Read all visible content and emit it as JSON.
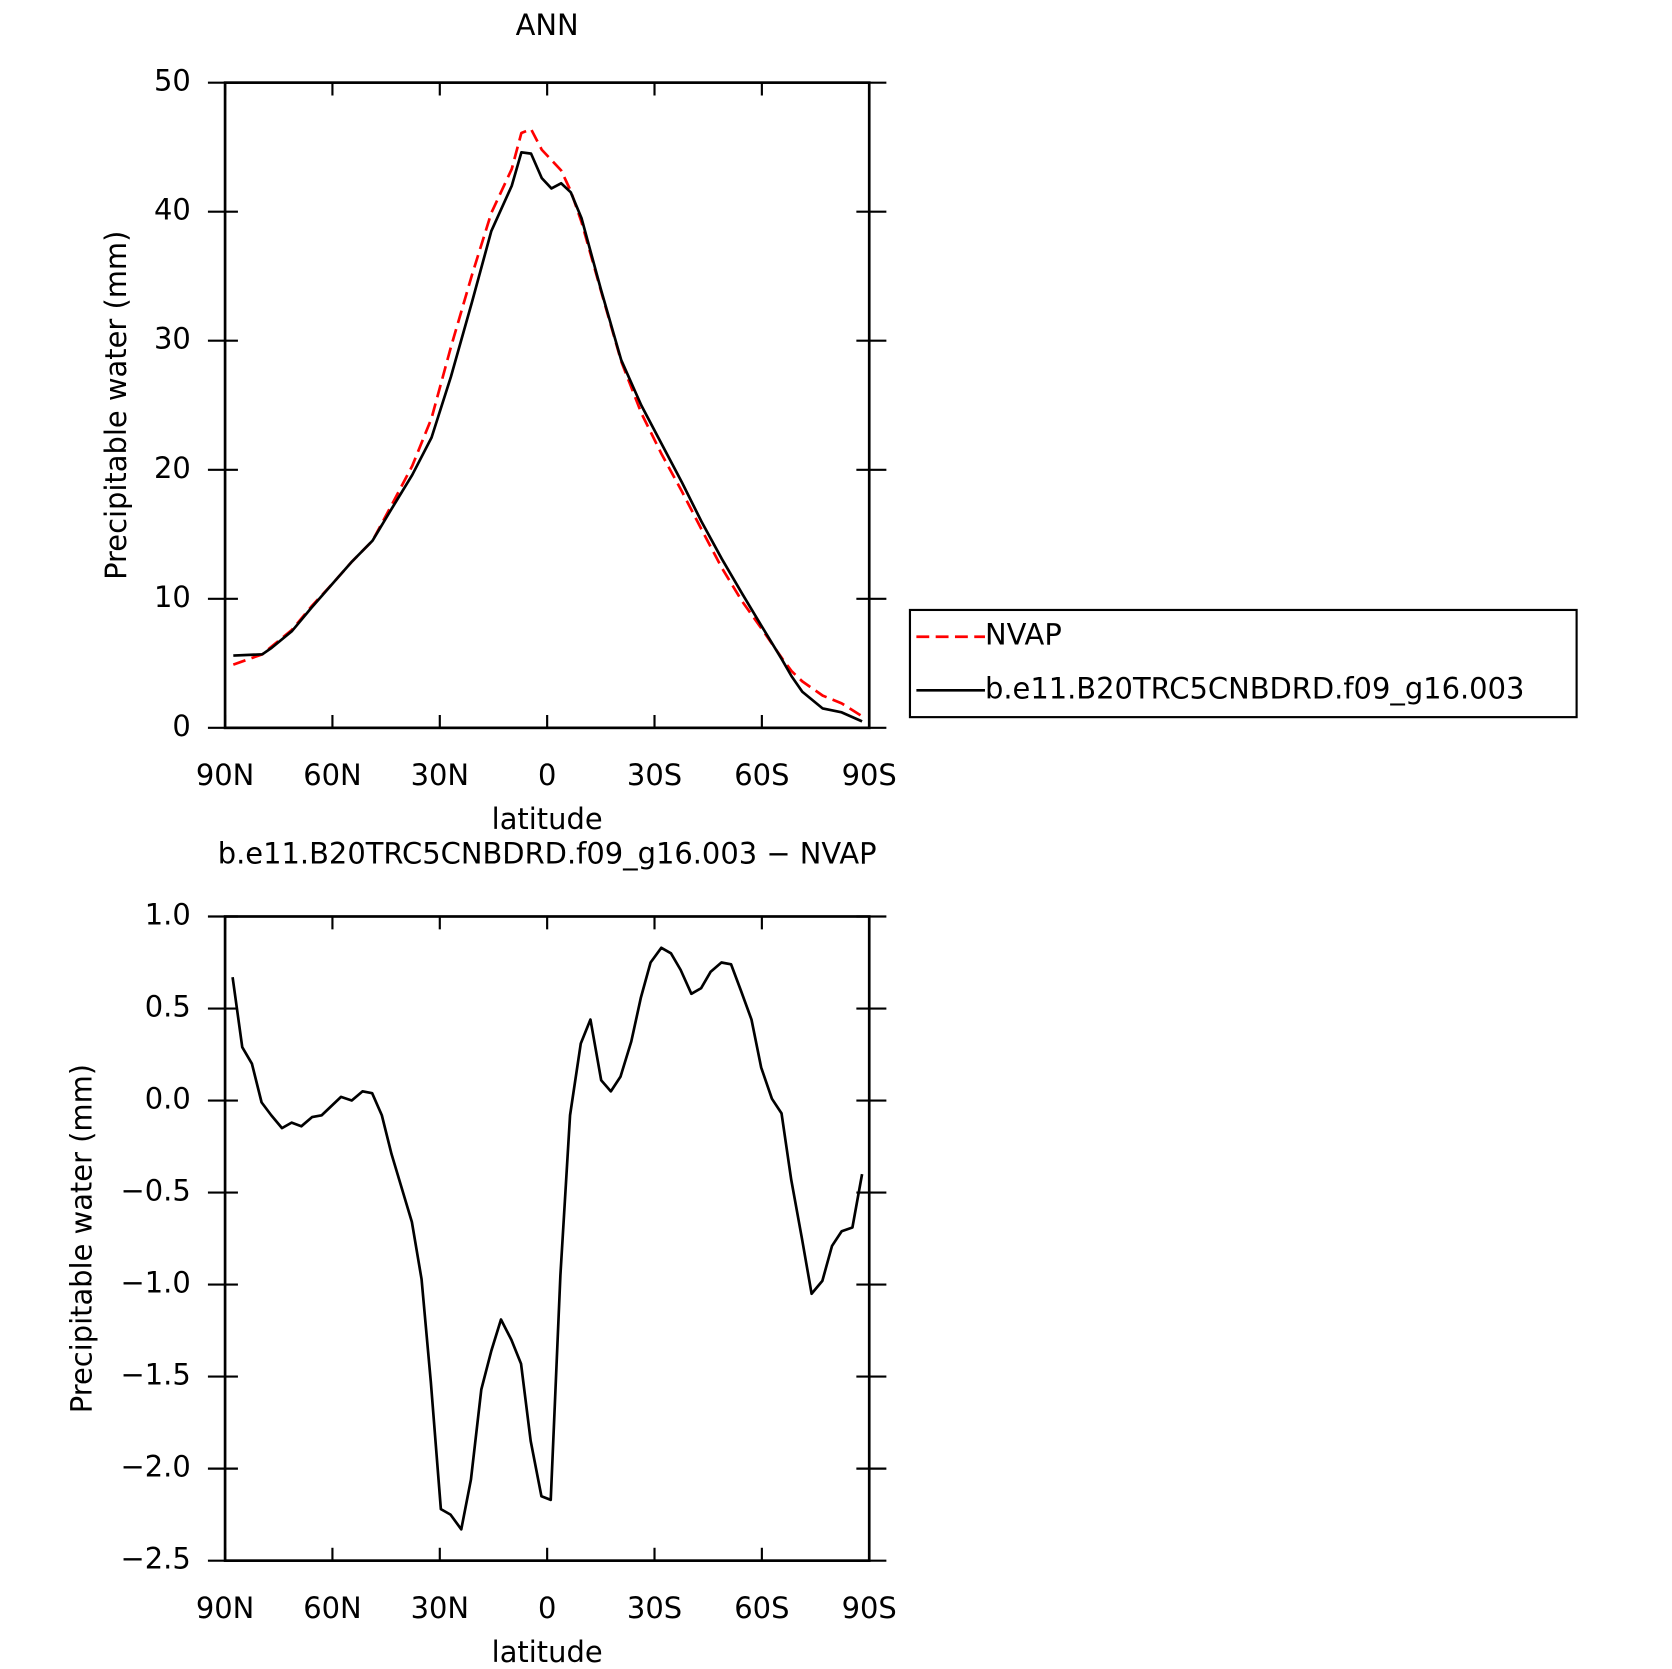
{
  "chart_data": [
    {
      "type": "line",
      "title": "ANN",
      "xlabel": "latitude",
      "ylabel": "Precipitable water (mm)",
      "x": [
        87.7,
        79.6,
        77,
        71.3,
        65.9,
        59.9,
        54.5,
        48.8,
        43.4,
        37.7,
        32.3,
        26.9,
        21,
        15.6,
        9.9,
        7.2,
        4.5,
        1.5,
        -1.2,
        -3.9,
        -6.6,
        -9.6,
        -15,
        -20.7,
        -26.3,
        -32,
        -37.7,
        -43.1,
        -48.8,
        -54.5,
        -59.9,
        -65.6,
        -68.3,
        -71.3,
        -77,
        -82.3,
        -88
      ],
      "series": [
        {
          "name": "NVAP",
          "color": "#ff0000",
          "dash": true,
          "values": [
            4.9,
            5.7,
            6.3,
            7.6,
            9.4,
            11.2,
            12.9,
            14.5,
            17.3,
            20.3,
            24.0,
            29.5,
            35.1,
            39.9,
            43.3,
            46.1,
            46.4,
            44.8,
            44.0,
            43.2,
            41.6,
            39.2,
            33.9,
            28.4,
            24.4,
            21.2,
            18.3,
            15.4,
            12.4,
            9.8,
            7.7,
            5.4,
            4.4,
            3.6,
            2.5,
            1.9,
            0.9
          ]
        },
        {
          "name": "b.e11.B20TRC5CNBDRD.f09_g16.003",
          "color": "#000000",
          "dash": false,
          "values": [
            5.6,
            5.7,
            6.2,
            7.5,
            9.3,
            11.2,
            12.9,
            14.5,
            17.0,
            19.6,
            22.5,
            27.2,
            33.0,
            38.5,
            42.0,
            44.6,
            44.5,
            42.6,
            41.8,
            42.2,
            41.5,
            39.5,
            34.0,
            28.5,
            25.0,
            22.0,
            19.0,
            16.0,
            13.1,
            10.4,
            7.9,
            5.3,
            4.0,
            2.8,
            1.5,
            1.2,
            0.5
          ]
        }
      ],
      "xlim": [
        90,
        -90
      ],
      "xticks": [
        {
          "value": 90,
          "label": "90N"
        },
        {
          "value": 60,
          "label": "60N"
        },
        {
          "value": 30,
          "label": "30N"
        },
        0,
        {
          "value": -30,
          "label": "30S"
        },
        {
          "value": -60,
          "label": "60S"
        },
        {
          "value": -90,
          "label": "90S"
        }
      ],
      "ylim": [
        0,
        50
      ],
      "yticks": [
        0,
        10,
        20,
        30,
        40,
        50
      ],
      "legend": "right"
    },
    {
      "type": "line",
      "title": "b.e11.B20TRC5CNBDRD.f09_g16.003 − NVAP",
      "xlabel": "latitude",
      "ylabel": "Precipitable water (mm)",
      "x": [
        87.9,
        85.2,
        82.5,
        79.8,
        77.1,
        74.1,
        71.4,
        68.7,
        65.7,
        63.0,
        57.6,
        54.6,
        51.6,
        48.9,
        46.2,
        43.5,
        37.8,
        35.1,
        32.5,
        29.7,
        27.0,
        24.0,
        21.3,
        18.4,
        15.6,
        12.9,
        10.0,
        7.3,
        4.6,
        1.6,
        -1.0,
        -3.7,
        -6.4,
        -9.4,
        -12.1,
        -15.1,
        -17.8,
        -20.5,
        -23.5,
        -26.2,
        -28.9,
        -31.9,
        -34.6,
        -37.3,
        -40.3,
        -43.0,
        -45.7,
        -48.7,
        -51.4,
        -54.1,
        -57.1,
        -59.8,
        -62.8,
        -65.5,
        -68.2,
        -71.2,
        -73.9,
        -76.9,
        -79.6,
        -82.3,
        -85.3,
        -88.0
      ],
      "series": [
        {
          "name": "b.e11.B20TRC5CNBDRD.f09_g16.003 − NVAP",
          "color": "#000000",
          "dash": false,
          "values": [
            0.67,
            0.29,
            0.2,
            -0.01,
            -0.08,
            -0.15,
            -0.12,
            -0.14,
            -0.09,
            -0.08,
            0.02,
            0.0,
            0.05,
            0.04,
            -0.08,
            -0.29,
            -0.66,
            -0.97,
            -1.53,
            -2.22,
            -2.25,
            -2.33,
            -2.06,
            -1.57,
            -1.36,
            -1.19,
            -1.3,
            -1.43,
            -1.85,
            -2.15,
            -2.17,
            -0.95,
            -0.08,
            0.31,
            0.44,
            0.11,
            0.05,
            0.13,
            0.32,
            0.56,
            0.75,
            0.83,
            0.8,
            0.71,
            0.58,
            0.61,
            0.7,
            0.75,
            0.74,
            0.6,
            0.44,
            0.18,
            0.01,
            -0.07,
            -0.43,
            -0.75,
            -1.05,
            -0.98,
            -0.79,
            -0.71,
            -0.69,
            -0.4
          ]
        }
      ],
      "xlim": [
        90,
        -90
      ],
      "xticks": [
        {
          "value": 90,
          "label": "90N"
        },
        {
          "value": 60,
          "label": "60N"
        },
        {
          "value": 30,
          "label": "30N"
        },
        0,
        {
          "value": -30,
          "label": "30S"
        },
        {
          "value": -60,
          "label": "60S"
        },
        {
          "value": -90,
          "label": "90S"
        }
      ],
      "ylim": [
        -2.5,
        1
      ],
      "yticks": [
        {
          "value": -2.5,
          "label": "−2.5"
        },
        {
          "value": -2,
          "label": "−2.0"
        },
        {
          "value": -1.5,
          "label": "−1.5"
        },
        {
          "value": -1,
          "label": "−1.0"
        },
        {
          "value": -0.5,
          "label": "−0.5"
        },
        {
          "value": 0,
          "label": "0.0"
        },
        0.5,
        {
          "value": 1,
          "label": "1.0"
        }
      ]
    }
  ]
}
